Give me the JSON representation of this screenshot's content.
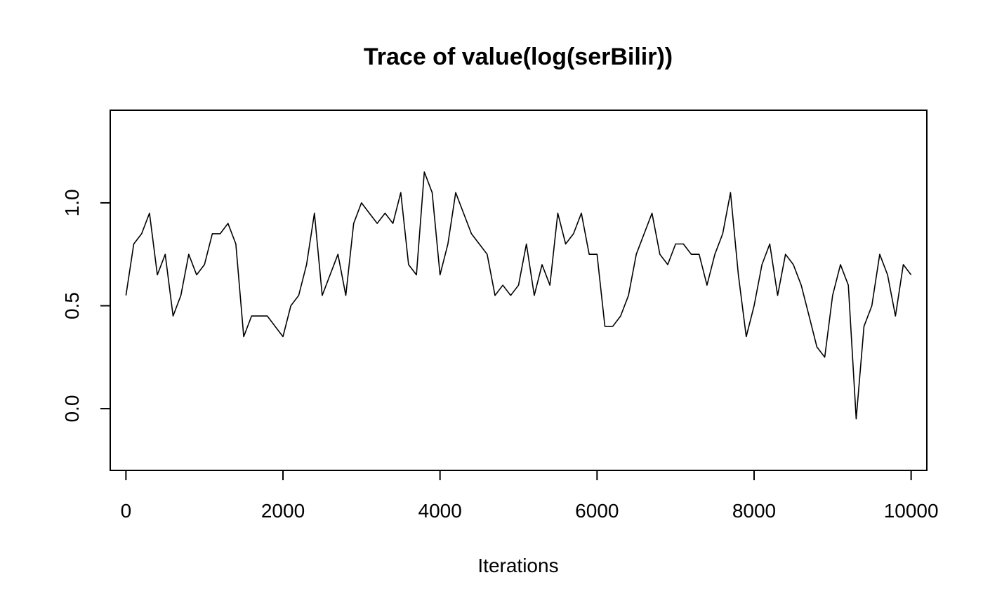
{
  "chart_data": {
    "type": "line",
    "title": "Trace of value(log(serBilir))",
    "xlabel": "Iterations",
    "ylabel": "",
    "xlim": [
      -200,
      10200
    ],
    "ylim": [
      -0.3,
      1.45
    ],
    "x_ticks": [
      0,
      2000,
      4000,
      6000,
      8000,
      10000
    ],
    "x_tick_labels": [
      "0",
      "2000",
      "4000",
      "6000",
      "8000",
      "10000"
    ],
    "y_ticks": [
      0.0,
      0.5,
      1.0
    ],
    "y_tick_labels": [
      "0.0",
      "0.5",
      "1.0"
    ],
    "grid": false,
    "legend": "none",
    "line_color": "#000000",
    "series": [
      {
        "x": [
          0,
          100,
          200,
          300,
          400,
          500,
          600,
          700,
          800,
          900,
          1000,
          1100,
          1200,
          1300,
          1400,
          1500,
          1600,
          1700,
          1800,
          1900,
          2000,
          2100,
          2200,
          2300,
          2400,
          2500,
          2600,
          2700,
          2800,
          2900,
          3000,
          3100,
          3200,
          3300,
          3400,
          3500,
          3600,
          3700,
          3800,
          3900,
          4000,
          4100,
          4200,
          4300,
          4400,
          4500,
          4600,
          4700,
          4800,
          4900,
          5000,
          5100,
          5200,
          5300,
          5400,
          5500,
          5600,
          5700,
          5800,
          5900,
          6000,
          6100,
          6200,
          6300,
          6400,
          6500,
          6600,
          6700,
          6800,
          6900,
          7000,
          7100,
          7200,
          7300,
          7400,
          7500,
          7600,
          7700,
          7800,
          7900,
          8000,
          8100,
          8200,
          8300,
          8400,
          8500,
          8600,
          8700,
          8800,
          8900,
          9000,
          9100,
          9200,
          9300,
          9400,
          9500,
          9600,
          9700,
          9800,
          9900,
          10000
        ],
        "values": [
          0.55,
          0.8,
          0.85,
          0.95,
          0.65,
          0.75,
          0.45,
          0.55,
          0.75,
          0.65,
          0.7,
          0.85,
          0.85,
          0.9,
          0.8,
          0.35,
          0.45,
          0.45,
          0.45,
          0.4,
          0.35,
          0.5,
          0.55,
          0.7,
          0.95,
          0.55,
          0.65,
          0.75,
          0.55,
          0.9,
          1.0,
          0.95,
          0.9,
          0.95,
          0.9,
          1.05,
          0.7,
          0.65,
          1.15,
          1.05,
          0.65,
          0.8,
          1.05,
          0.95,
          0.85,
          0.8,
          0.75,
          0.55,
          0.6,
          0.55,
          0.6,
          0.8,
          0.55,
          0.7,
          0.6,
          0.95,
          0.8,
          0.85,
          0.95,
          0.75,
          0.75,
          0.4,
          0.4,
          0.45,
          0.55,
          0.75,
          0.85,
          0.95,
          0.75,
          0.7,
          0.8,
          0.8,
          0.75,
          0.75,
          0.6,
          0.75,
          0.85,
          1.05,
          0.65,
          0.35,
          0.5,
          0.7,
          0.8,
          0.55,
          0.75,
          0.7,
          0.6,
          0.45,
          0.3,
          0.25,
          0.55,
          0.7,
          0.6,
          -0.05,
          0.4,
          0.5,
          0.75,
          0.65,
          0.45,
          0.7,
          0.65
        ]
      }
    ]
  }
}
